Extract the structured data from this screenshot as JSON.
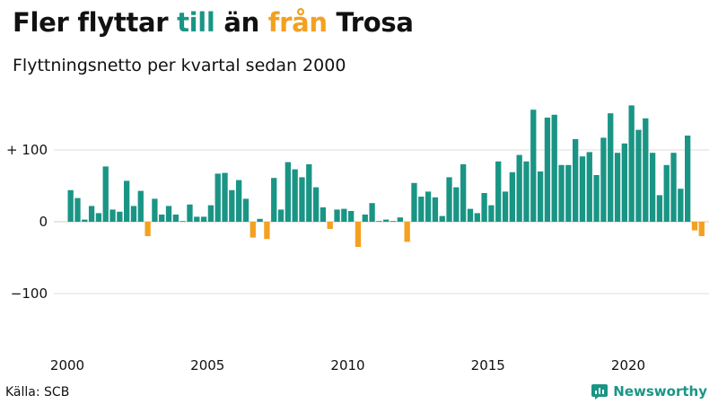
{
  "header": {
    "title_parts": [
      "Fler flyttar ",
      "till",
      " än ",
      "från",
      " Trosa"
    ],
    "subtitle": "Flyttningsnetto per kvartal sedan 2000"
  },
  "footer": {
    "source": "Källa: SCB",
    "brand": "Newsworthy",
    "brand_icon": "newsworthy-chart-logo-icon"
  },
  "colors": {
    "positive": "#1a9585",
    "negative": "#f4a020",
    "grid": "#dddddd",
    "text": "#111111"
  },
  "chart_data": {
    "type": "bar",
    "title": "Fler flyttar till än från Trosa",
    "subtitle": "Flyttningsnetto per kvartal sedan 2000",
    "xlabel": "",
    "ylabel": "",
    "start_year": 2000,
    "periods_per_year": 4,
    "x_ticks": [
      "2000",
      "2005",
      "2010",
      "2015",
      "2020"
    ],
    "y_ticks": [
      {
        "value": 100,
        "label": "+ 100"
      },
      {
        "value": 0,
        "label": "0"
      },
      {
        "value": -100,
        "label": "−100"
      }
    ],
    "ylim": [
      -175,
      170
    ],
    "grid": true,
    "values": [
      44,
      33,
      3,
      22,
      12,
      77,
      17,
      14,
      57,
      22,
      43,
      -20,
      32,
      10,
      22,
      10,
      1,
      24,
      7,
      7,
      23,
      67,
      68,
      44,
      58,
      32,
      -22,
      4,
      -24,
      61,
      17,
      83,
      73,
      62,
      80,
      48,
      20,
      -10,
      17,
      18,
      15,
      -35,
      10,
      26,
      1,
      3,
      1,
      6,
      -28,
      54,
      35,
      42,
      34,
      8,
      62,
      48,
      80,
      18,
      12,
      40,
      23,
      84,
      42,
      69,
      93,
      84,
      156,
      70,
      145,
      149,
      79,
      79,
      115,
      91,
      97,
      65,
      117,
      151,
      96,
      109,
      162,
      128,
      144,
      96,
      37,
      79,
      96,
      46,
      120,
      -12,
      -20
    ]
  }
}
